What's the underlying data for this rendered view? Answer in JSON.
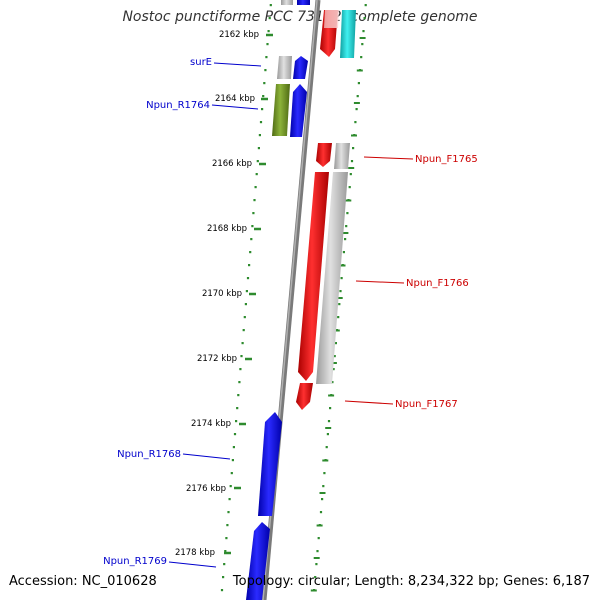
{
  "title": "Nostoc punctiforme PCC 73102, complete genome",
  "footer": {
    "accession": "Accession: NC_010628",
    "summary": "Topology: circular; Length: 8,234,322 bp; Genes: 6,187"
  },
  "colors": {
    "backbone": "#808080",
    "tick": "#2e8b2e",
    "forward_gene_blue": "#0000ee",
    "reverse_gene_red": "#ee0000",
    "gray_gene": "#b8b8b8",
    "olive_gene": "#6b8e23",
    "cyan_gene": "#20c8c8",
    "label_blue": "#0000cc",
    "label_red": "#cc0000"
  },
  "scale_labels": [
    "2162 kbp",
    "2164 kbp",
    "2166 kbp",
    "2168 kbp",
    "2170 kbp",
    "2172 kbp",
    "2174 kbp",
    "2176 kbp",
    "2178 kbp"
  ],
  "gene_labels": {
    "left": [
      "surE",
      "Npun_R1764",
      "Npun_R1768",
      "Npun_R1769"
    ],
    "right": [
      "Npun_F1765",
      "Npun_F1766",
      "Npun_F1767"
    ]
  }
}
